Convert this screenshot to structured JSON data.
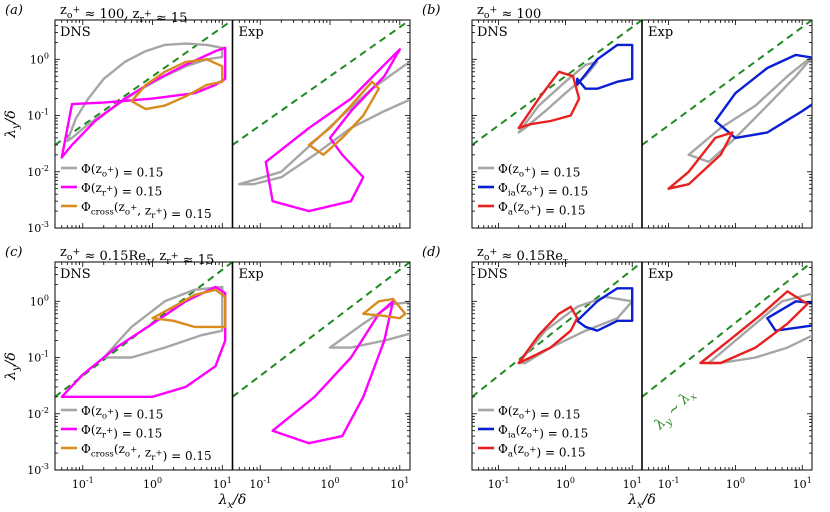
{
  "chart_data": [
    {
      "type": "line",
      "panel_label": "(a)",
      "title": "z_o^+ ≈ 100, z_r^+ ≈ 15",
      "left_label": "DNS",
      "right_label": "Exp",
      "xlabel": "λx/δ",
      "ylabel": "λy/δ",
      "x_scale": "log",
      "y_scale": "log",
      "xlim": [
        0.04,
        14
      ],
      "ylim": [
        0.001,
        5
      ],
      "x_ticks": [
        "10^-1",
        "10^0",
        "10^1"
      ],
      "y_ticks": [
        "10^-3",
        "10^-2",
        "10^-1",
        "10^0"
      ],
      "legend_position": "lower-left",
      "reference_line": {
        "label": "",
        "x": [
          0.04,
          14
        ],
        "y": [
          0.03,
          5
        ]
      },
      "series": [
        {
          "name": "Φ(z_o^+) = 0.15",
          "color": "#a6a6a6",
          "dns": {
            "x": [
              0.06,
              0.08,
              0.12,
              0.2,
              0.4,
              0.8,
              1.5,
              3,
              6,
              10,
              10,
              6,
              3,
              1.5,
              0.7,
              0.3,
              0.12,
              0.07,
              0.06
            ],
            "y": [
              0.035,
              0.09,
              0.2,
              0.45,
              0.9,
              1.4,
              1.8,
              1.9,
              1.8,
              1.6,
              1.1,
              1.0,
              0.75,
              0.5,
              0.3,
              0.15,
              0.07,
              0.04,
              0.035
            ]
          },
          "exp": {
            "x": [
              0.05,
              0.2,
              0.6,
              1.5,
              4,
              12,
              40,
              38,
              30,
              15,
              6,
              2,
              0.6,
              0.2,
              0.08,
              0.05
            ],
            "y": [
              0.006,
              0.01,
              0.035,
              0.1,
              0.3,
              0.8,
              1.5,
              0.8,
              0.4,
              0.2,
              0.12,
              0.06,
              0.02,
              0.008,
              0.006,
              0.006
            ]
          }
        },
        {
          "name": "Φ(z_r^+) = 0.15",
          "color": "#ff00ff",
          "dns": {
            "x": [
              0.05,
              0.07,
              0.15,
              0.4,
              1,
              3,
              8,
              11,
              11,
              8,
              4,
              1,
              0.2,
              0.07,
              0.05
            ],
            "y": [
              0.018,
              0.03,
              0.08,
              0.2,
              0.4,
              0.8,
              1.4,
              1.6,
              0.45,
              0.35,
              0.25,
              0.2,
              0.17,
              0.16,
              0.018
            ]
          },
          "exp": {
            "x": [
              0.12,
              0.5,
              2,
              6,
              10,
              6,
              2,
              1,
              1.5,
              3,
              2,
              0.5,
              0.15,
              0.12
            ],
            "y": [
              0.015,
              0.06,
              0.2,
              0.8,
              1.5,
              0.5,
              0.12,
              0.04,
              0.02,
              0.008,
              0.003,
              0.002,
              0.003,
              0.015
            ]
          }
        },
        {
          "name": "Φ_cross(z_o^+, z_r^+) = 0.15",
          "color": "#d98b1e",
          "dns": {
            "x": [
              0.5,
              0.8,
              1.5,
              3,
              6,
              10,
              10,
              6,
              3,
              1.5,
              0.8,
              0.5
            ],
            "y": [
              0.18,
              0.35,
              0.6,
              0.9,
              1.0,
              0.75,
              0.4,
              0.35,
              0.22,
              0.15,
              0.13,
              0.18
            ]
          },
          "exp": {
            "x": [
              0.5,
              1,
              2,
              4,
              5,
              3,
              1.5,
              0.8,
              0.5
            ],
            "y": [
              0.03,
              0.06,
              0.15,
              0.4,
              0.3,
              0.1,
              0.04,
              0.02,
              0.03
            ]
          }
        }
      ]
    },
    {
      "type": "line",
      "panel_label": "(b)",
      "title": "z_o^+ ≈ 100",
      "left_label": "DNS",
      "right_label": "Exp",
      "xlabel": "λx/δ",
      "ylabel": "λy/δ",
      "x_scale": "log",
      "y_scale": "log",
      "xlim": [
        0.04,
        14
      ],
      "ylim": [
        0.001,
        5
      ],
      "legend_position": "lower-left",
      "reference_line": {
        "label": "",
        "x": [
          0.04,
          14
        ],
        "y": [
          0.03,
          5
        ]
      },
      "series": [
        {
          "name": "Φ(z_o^+) = 0.15",
          "color": "#a6a6a6",
          "dns": {
            "x": [
              0.2,
              0.4,
              1,
              2,
              3,
              2,
              1,
              0.5,
              0.25,
              0.2
            ],
            "y": [
              0.05,
              0.15,
              0.4,
              0.8,
              0.9,
              0.5,
              0.25,
              0.12,
              0.06,
              0.05
            ]
          },
          "exp": {
            "x": [
              0.2,
              0.6,
              2,
              6,
              15,
              8,
              3,
              1,
              0.4,
              0.2
            ],
            "y": [
              0.02,
              0.06,
              0.15,
              0.5,
              1.2,
              0.5,
              0.15,
              0.04,
              0.015,
              0.02
            ]
          }
        },
        {
          "name": "Φ_ia(z_o^+) = 0.15",
          "color": "#0a1ed4",
          "dns": {
            "x": [
              1.5,
              3,
              6,
              10,
              10,
              6,
              3,
              2,
              1.5,
              1.5
            ],
            "y": [
              0.35,
              1.0,
              1.8,
              1.8,
              0.45,
              0.4,
              0.3,
              0.3,
              0.45,
              0.35
            ]
          },
          "exp": {
            "x": [
              0.5,
              1,
              3,
              8,
              20,
              35,
              25,
              10,
              3,
              1,
              0.5
            ],
            "y": [
              0.08,
              0.25,
              0.7,
              1.2,
              1.0,
              0.5,
              0.25,
              0.12,
              0.05,
              0.04,
              0.08
            ]
          }
        },
        {
          "name": "Φ_a(z_o^+) = 0.15",
          "color": "#e82020",
          "dns": {
            "x": [
              0.2,
              0.4,
              0.8,
              1.3,
              1.6,
              1.2,
              0.6,
              0.3,
              0.2
            ],
            "y": [
              0.06,
              0.2,
              0.6,
              0.5,
              0.2,
              0.1,
              0.08,
              0.07,
              0.06
            ]
          },
          "exp": {
            "x": [
              0.1,
              0.2,
              0.5,
              0.9,
              0.6,
              0.2,
              0.1
            ],
            "y": [
              0.005,
              0.01,
              0.04,
              0.05,
              0.02,
              0.006,
              0.005
            ]
          }
        }
      ]
    },
    {
      "type": "line",
      "panel_label": "(c)",
      "title": "z_o^+ ≈ 0.15Re_τ, z_r^+ ≈ 15",
      "left_label": "DNS",
      "right_label": "Exp",
      "xlabel": "λx/δ",
      "ylabel": "λy/δ",
      "x_scale": "log",
      "y_scale": "log",
      "xlim": [
        0.04,
        14
      ],
      "ylim": [
        0.001,
        5
      ],
      "legend_position": "lower-left",
      "reference_line": {
        "label": "",
        "x": [
          0.04,
          14
        ],
        "y": [
          0.02,
          5
        ]
      },
      "series": [
        {
          "name": "Φ(z_o^+) = 0.15",
          "color": "#a6a6a6",
          "dns": {
            "x": [
              0.2,
              0.5,
              1.5,
              4,
              10,
              10,
              5,
              1.5,
              0.5,
              0.2
            ],
            "y": [
              0.1,
              0.35,
              1.0,
              1.6,
              1.8,
              0.3,
              0.25,
              0.15,
              0.1,
              0.1
            ]
          },
          "exp": {
            "x": [
              1,
              3,
              8,
              20,
              35,
              20,
              6,
              2,
              1
            ],
            "y": [
              0.15,
              0.4,
              0.9,
              1.0,
              0.5,
              0.3,
              0.2,
              0.15,
              0.15
            ]
          }
        },
        {
          "name": "Φ(z_r^+) = 0.15",
          "color": "#ff00ff",
          "dns": {
            "x": [
              0.05,
              0.1,
              0.3,
              1,
              3,
              8,
              11,
              11,
              8,
              3,
              1,
              0.2,
              0.05
            ],
            "y": [
              0.02,
              0.05,
              0.15,
              0.4,
              1.0,
              1.8,
              1.4,
              0.2,
              0.07,
              0.03,
              0.02,
              0.02,
              0.02
            ]
          },
          "exp": {
            "x": [
              0.15,
              0.6,
              2,
              5,
              8,
              6,
              3,
              1.5,
              0.5,
              0.15
            ],
            "y": [
              0.005,
              0.02,
              0.1,
              0.6,
              1.0,
              0.2,
              0.02,
              0.004,
              0.003,
              0.005
            ]
          }
        },
        {
          "name": "Φ_cross(z_o^+, z_r^+) = 0.15",
          "color": "#d98b1e",
          "dns": {
            "x": [
              1,
              2,
              4,
              8,
              11,
              11,
              8,
              4,
              2,
              1
            ],
            "y": [
              0.5,
              0.8,
              1.3,
              1.6,
              1.2,
              0.35,
              0.35,
              0.35,
              0.45,
              0.5
            ]
          },
          "exp": {
            "x": [
              3,
              5,
              8,
              12,
              10,
              6,
              3
            ],
            "y": [
              0.6,
              1.0,
              1.1,
              0.6,
              0.5,
              0.55,
              0.6
            ]
          }
        }
      ]
    },
    {
      "type": "line",
      "panel_label": "(d)",
      "title": "z_o^+ ≈ 0.15Re_τ",
      "left_label": "DNS",
      "right_label": "Exp",
      "xlabel": "λx/δ",
      "ylabel": "λy/δ",
      "x_scale": "log",
      "y_scale": "log",
      "xlim": [
        0.04,
        14
      ],
      "ylim": [
        0.001,
        5
      ],
      "legend_position": "lower-left",
      "reference_line": {
        "label": "λy ∼ λx",
        "x": [
          0.04,
          14
        ],
        "y": [
          0.02,
          5
        ]
      },
      "series": [
        {
          "name": "Φ(z_o^+) = 0.15",
          "color": "#a6a6a6",
          "dns": {
            "x": [
              0.2,
              0.5,
              1.5,
              4,
              10,
              6,
              2,
              0.6,
              0.25,
              0.2
            ],
            "y": [
              0.08,
              0.3,
              0.8,
              1.2,
              1.0,
              0.5,
              0.3,
              0.15,
              0.08,
              0.08
            ]
          },
          "exp": {
            "x": [
              0.4,
              1.5,
              5,
              15,
              30,
              20,
              6,
              2,
              0.6,
              0.4
            ],
            "y": [
              0.08,
              0.3,
              1.0,
              1.4,
              0.6,
              0.3,
              0.15,
              0.1,
              0.08,
              0.08
            ]
          }
        },
        {
          "name": "Φ_ia(z_o^+) = 0.15",
          "color": "#0a1ed4",
          "dns": {
            "x": [
              1.5,
              3,
              6,
              10,
              10,
              6,
              3,
              2,
              1.5
            ],
            "y": [
              0.45,
              1.0,
              1.7,
              1.7,
              0.45,
              0.45,
              0.3,
              0.35,
              0.45
            ]
          },
          "exp": {
            "x": [
              3,
              8,
              20,
              22,
              10,
              4,
              3
            ],
            "y": [
              0.5,
              1.0,
              0.9,
              0.4,
              0.35,
              0.3,
              0.5
            ]
          }
        },
        {
          "name": "Φ_a(z_o^+) = 0.15",
          "color": "#e82020",
          "dns": {
            "x": [
              0.2,
              0.4,
              0.8,
              1.2,
              1.5,
              1.2,
              0.6,
              0.3,
              0.2
            ],
            "y": [
              0.08,
              0.25,
              0.6,
              0.8,
              0.5,
              0.3,
              0.15,
              0.1,
              0.08
            ]
          },
          "exp": {
            "x": [
              0.3,
              0.8,
              2.5,
              6,
              12,
              6,
              2,
              0.6,
              0.3
            ],
            "y": [
              0.08,
              0.2,
              0.6,
              1.5,
              0.9,
              0.4,
              0.15,
              0.08,
              0.08
            ]
          }
        }
      ]
    }
  ],
  "colors": {
    "reference_line": "#1f8a1f",
    "divider": "#000000"
  }
}
